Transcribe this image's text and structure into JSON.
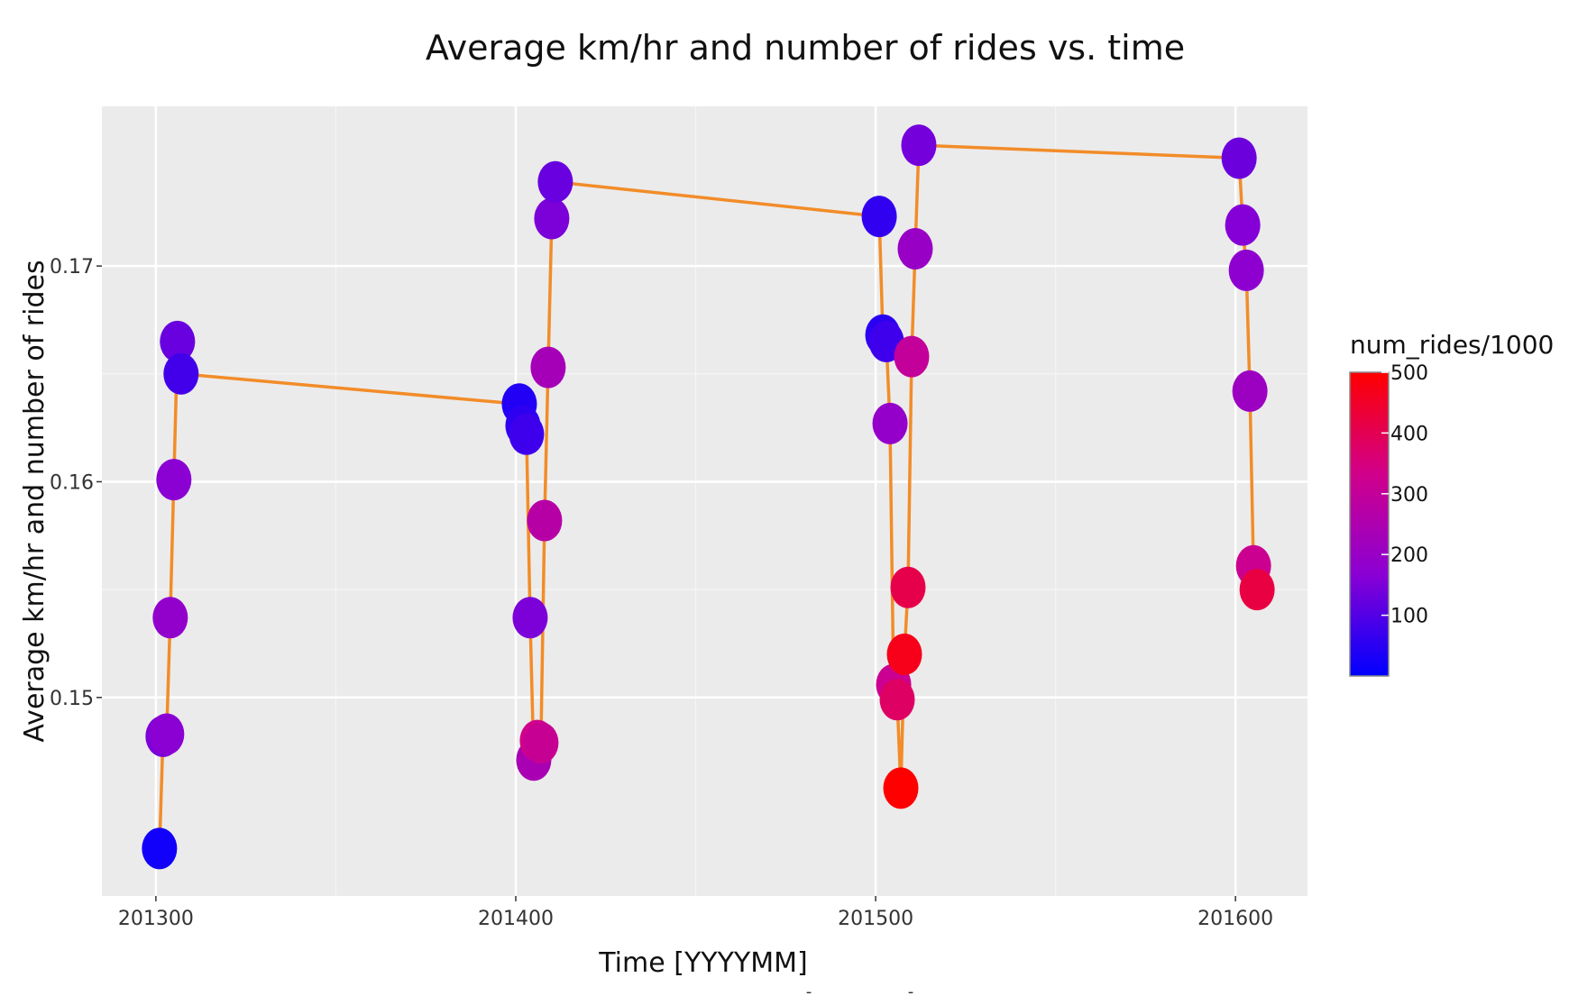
{
  "chart_data": {
    "type": "line",
    "title": "Average km/hr and number of rides vs. time",
    "xlabel": "Time [YYYYMM]",
    "ylabel": "Average km/hr and number of rides",
    "xlim": [
      201285,
      201620
    ],
    "ylim": [
      0.1408,
      0.1774
    ],
    "x_ticks": [
      201300,
      201400,
      201500,
      201600
    ],
    "x_tick_labels": [
      "201300",
      "201400",
      "201500",
      "201600"
    ],
    "y_ticks": [
      0.15,
      0.16,
      0.17
    ],
    "y_tick_labels": [
      "0.15",
      "0.16",
      "0.17"
    ],
    "grid": true,
    "legend": {
      "title": "num_rides/1000",
      "placement": "right",
      "color_scale": [
        "#0000ff",
        "#8a00d4",
        "#d1008a",
        "#ff0000"
      ],
      "range": [
        0,
        500
      ],
      "ticks": [
        100,
        200,
        300,
        400,
        500
      ],
      "tick_labels": [
        "100",
        "200",
        "300",
        "400",
        "500"
      ]
    },
    "line_color": "#f28c28",
    "points": [
      {
        "x": 201301,
        "y": 0.143,
        "num_rides": 20
      },
      {
        "x": 201302,
        "y": 0.1482,
        "num_rides": 150
      },
      {
        "x": 201303,
        "y": 0.1483,
        "num_rides": 170
      },
      {
        "x": 201304,
        "y": 0.1537,
        "num_rides": 185
      },
      {
        "x": 201305,
        "y": 0.1601,
        "num_rides": 170
      },
      {
        "x": 201306,
        "y": 0.1665,
        "num_rides": 125
      },
      {
        "x": 201307,
        "y": 0.165,
        "num_rides": 80
      },
      {
        "x": 201401,
        "y": 0.1636,
        "num_rides": 40
      },
      {
        "x": 201402,
        "y": 0.1626,
        "num_rides": 55
      },
      {
        "x": 201403,
        "y": 0.1622,
        "num_rides": 75
      },
      {
        "x": 201404,
        "y": 0.1537,
        "num_rides": 150
      },
      {
        "x": 201405,
        "y": 0.1471,
        "num_rides": 240
      },
      {
        "x": 201406,
        "y": 0.148,
        "num_rides": 330
      },
      {
        "x": 201407,
        "y": 0.1479,
        "num_rides": 310
      },
      {
        "x": 201408,
        "y": 0.1582,
        "num_rides": 270
      },
      {
        "x": 201409,
        "y": 0.1653,
        "num_rides": 230
      },
      {
        "x": 201410,
        "y": 0.1722,
        "num_rides": 150
      },
      {
        "x": 201411,
        "y": 0.1739,
        "num_rides": 125
      },
      {
        "x": 201501,
        "y": 0.1723,
        "num_rides": 60
      },
      {
        "x": 201502,
        "y": 0.1668,
        "num_rides": 50
      },
      {
        "x": 201503,
        "y": 0.1665,
        "num_rides": 75
      },
      {
        "x": 201504,
        "y": 0.1627,
        "num_rides": 190
      },
      {
        "x": 201505,
        "y": 0.1506,
        "num_rides": 320
      },
      {
        "x": 201506,
        "y": 0.1499,
        "num_rides": 380
      },
      {
        "x": 201507,
        "y": 0.1458,
        "num_rides": 500
      },
      {
        "x": 201508,
        "y": 0.152,
        "num_rides": 470
      },
      {
        "x": 201509,
        "y": 0.1551,
        "num_rides": 410
      },
      {
        "x": 201510,
        "y": 0.1658,
        "num_rides": 300
      },
      {
        "x": 201511,
        "y": 0.1708,
        "num_rides": 200
      },
      {
        "x": 201512,
        "y": 0.1756,
        "num_rides": 140
      },
      {
        "x": 201601,
        "y": 0.175,
        "num_rides": 130
      },
      {
        "x": 201602,
        "y": 0.1719,
        "num_rides": 160
      },
      {
        "x": 201603,
        "y": 0.1698,
        "num_rides": 175
      },
      {
        "x": 201604,
        "y": 0.1642,
        "num_rides": 210
      },
      {
        "x": 201605,
        "y": 0.1561,
        "num_rides": 320
      },
      {
        "x": 201606,
        "y": 0.155,
        "num_rides": 420
      }
    ]
  },
  "footnote_marks": [
    "-",
    "-"
  ]
}
